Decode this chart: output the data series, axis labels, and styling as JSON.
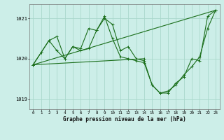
{
  "title": "Graphe pression niveau de la mer (hPa)",
  "bg_color": "#cceee8",
  "grid_color": "#aad8cc",
  "line_color": "#1a6e1a",
  "xlim": [
    -0.5,
    23.5
  ],
  "ylim": [
    1018.75,
    1021.35
  ],
  "yticks": [
    1019,
    1020,
    1021
  ],
  "xticks": [
    0,
    1,
    2,
    3,
    4,
    5,
    6,
    7,
    8,
    9,
    10,
    11,
    12,
    13,
    14,
    15,
    16,
    17,
    18,
    19,
    20,
    21,
    22,
    23
  ],
  "series1_x": [
    0,
    1,
    2,
    3,
    4,
    5,
    6,
    7,
    8,
    9,
    10,
    11,
    12,
    13,
    14,
    15,
    16,
    17,
    18,
    19,
    20,
    21,
    22,
    23
  ],
  "series1_y": [
    1019.85,
    1020.15,
    1020.45,
    1020.55,
    1020.0,
    1020.3,
    1020.25,
    1020.75,
    1020.7,
    1021.0,
    1020.85,
    1020.2,
    1020.3,
    1020.0,
    1019.95,
    1019.35,
    1019.15,
    1019.15,
    1019.4,
    1019.55,
    1020.0,
    1019.95,
    1021.05,
    1021.2
  ],
  "series2_x": [
    0,
    1,
    2,
    3,
    4,
    5,
    6,
    7,
    8,
    9,
    10,
    11,
    12,
    13,
    14,
    15,
    16,
    17,
    18,
    19,
    20,
    21,
    22,
    23
  ],
  "series2_y": [
    1019.85,
    1020.15,
    1020.45,
    1020.2,
    1020.0,
    1020.3,
    1020.2,
    1020.25,
    1020.7,
    1021.05,
    1020.5,
    1020.05,
    1020.0,
    1019.95,
    1019.9,
    1019.35,
    1019.15,
    1019.2,
    1019.35,
    1019.6,
    1019.8,
    1020.05,
    1020.75,
    1021.2
  ],
  "series3_x": [
    0,
    23
  ],
  "series3_y": [
    1019.85,
    1021.2
  ],
  "series4_x": [
    0,
    14
  ],
  "series4_y": [
    1019.85,
    1020.0
  ]
}
